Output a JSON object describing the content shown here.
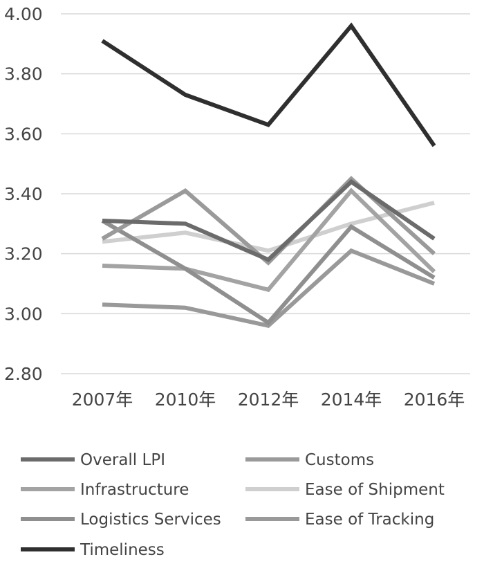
{
  "chart_data": {
    "type": "line",
    "categories": [
      "2007年",
      "2010年",
      "2012年",
      "2014年",
      "2016年"
    ],
    "ylim": [
      2.8,
      4.0
    ],
    "yticks": [
      "4.00",
      "3.80",
      "3.60",
      "3.40",
      "3.20",
      "3.00",
      "2.80"
    ],
    "ytick_values": [
      4.0,
      3.8,
      3.6,
      3.4,
      3.2,
      3.0,
      2.8
    ],
    "grid": true,
    "legend_position": "bottom",
    "series": [
      {
        "name": "Overall LPI",
        "color": "#6b6b6b",
        "values": [
          3.31,
          3.3,
          3.18,
          3.44,
          3.25
        ]
      },
      {
        "name": "Customs",
        "color": "#9a9a9a",
        "values": [
          3.25,
          3.41,
          3.17,
          3.45,
          3.2
        ]
      },
      {
        "name": "Infrastructure",
        "color": "#a3a3a3",
        "values": [
          3.16,
          3.15,
          3.08,
          3.41,
          3.14
        ]
      },
      {
        "name": "Ease of Shipment",
        "color": "#cfcfcf",
        "values": [
          3.24,
          3.27,
          3.21,
          3.3,
          3.37
        ]
      },
      {
        "name": "Logistics Services",
        "color": "#8f8f8f",
        "values": [
          3.31,
          3.15,
          2.97,
          3.29,
          3.12
        ]
      },
      {
        "name": "Ease of Tracking",
        "color": "#999999",
        "values": [
          3.03,
          3.02,
          2.96,
          3.21,
          3.1
        ]
      },
      {
        "name": "Timeliness",
        "color": "#2f2f2f",
        "values": [
          3.91,
          3.73,
          3.63,
          3.96,
          3.56
        ]
      }
    ]
  }
}
